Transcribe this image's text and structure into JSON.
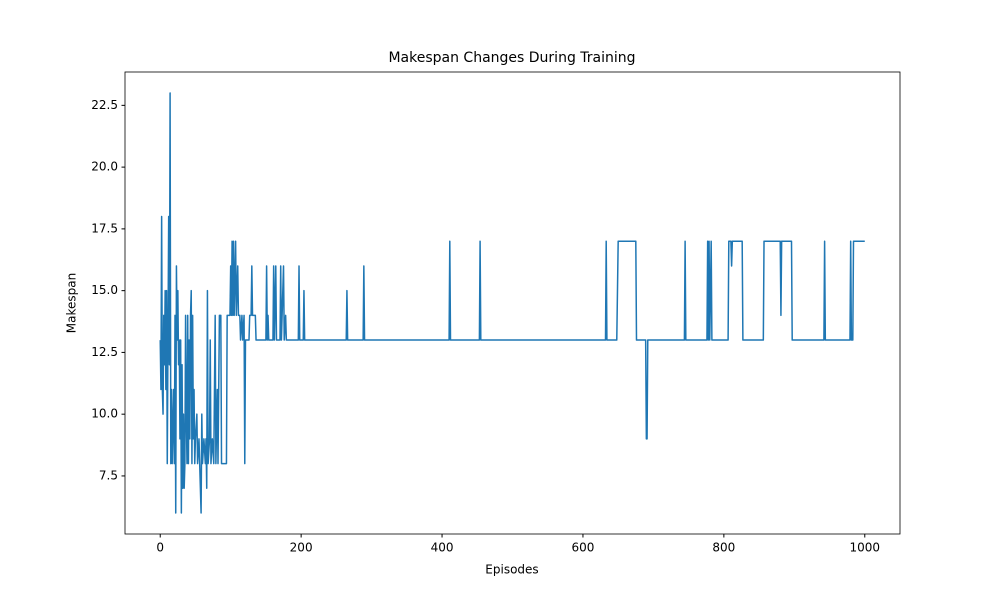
{
  "chart_data": {
    "type": "line",
    "title": "Makespan Changes During Training",
    "x_label": "Episodes",
    "y_label": "Makespan",
    "xlim": [
      -50,
      1050
    ],
    "ylim": [
      5.15,
      23.85
    ],
    "xticks": [
      0,
      200,
      400,
      600,
      800,
      1000
    ],
    "yticks": [
      7.5,
      {
        "value": 10,
        "label": "10.0"
      },
      12.5,
      {
        "value": 15,
        "label": "15.0"
      },
      17.5,
      {
        "value": 20,
        "label": "20.0"
      },
      22.5
    ],
    "grid": false,
    "x": [
      0,
      1,
      2,
      3,
      4,
      5,
      6,
      7,
      8,
      9,
      10,
      11,
      12,
      13,
      14,
      15,
      16,
      17,
      19,
      20,
      21,
      22,
      23,
      24,
      25,
      26,
      27,
      28,
      29,
      30,
      31,
      32,
      33,
      34,
      35,
      36,
      37,
      38,
      39,
      40,
      41,
      42,
      43,
      44,
      45,
      46,
      47,
      48,
      49,
      50,
      52,
      53,
      55,
      56,
      58,
      59,
      60,
      62,
      64,
      65,
      66,
      67,
      68,
      70,
      71,
      72,
      74,
      76,
      78,
      79,
      81,
      82,
      84,
      86,
      87,
      94,
      95,
      99,
      100,
      101,
      102,
      103,
      104,
      105,
      107,
      108,
      110,
      111,
      113,
      114,
      116,
      117,
      119,
      120,
      121,
      126,
      127,
      129,
      130,
      131,
      135,
      136,
      150,
      151,
      152,
      153,
      154,
      160,
      161,
      162,
      164,
      165,
      170,
      171,
      172,
      175,
      176,
      178,
      179,
      196,
      197,
      198,
      203,
      204,
      205,
      264,
      265,
      266,
      288,
      289,
      290,
      410,
      411,
      412,
      453,
      454,
      455,
      632,
      633,
      634,
      648,
      650,
      675,
      676,
      689,
      690,
      691,
      692,
      744,
      745,
      746,
      776,
      777,
      778,
      779,
      780,
      782,
      783,
      806,
      807,
      810,
      811,
      812,
      826,
      827,
      856,
      857,
      880,
      881,
      882,
      896,
      897,
      942,
      943,
      944,
      979,
      980,
      981,
      983,
      984,
      1000
    ],
    "series": [
      {
        "color": "#1f77b4",
        "values": [
          13,
          11,
          18,
          11,
          10,
          14,
          12,
          15,
          11,
          15,
          8,
          13,
          18,
          12,
          23,
          8,
          11,
          8,
          11,
          8,
          14,
          6,
          16,
          13,
          15,
          12,
          13,
          9,
          13,
          6,
          12,
          7,
          10,
          7,
          8,
          14,
          10,
          8,
          14,
          8,
          13,
          9,
          14,
          15,
          8,
          14,
          9,
          11,
          8,
          9,
          10,
          8,
          9,
          8,
          6,
          10,
          8,
          9,
          8,
          9,
          7,
          15,
          8,
          9,
          13,
          8,
          9,
          8,
          14,
          8,
          11,
          8,
          14,
          14,
          8,
          8,
          14,
          14,
          16,
          14,
          17,
          14,
          17,
          14,
          17,
          14,
          16,
          14,
          14,
          13,
          14,
          13,
          14,
          8,
          13,
          13,
          14,
          14,
          16,
          14,
          14,
          13,
          13,
          16,
          13,
          14,
          13,
          13,
          16,
          13,
          16,
          13,
          13,
          16,
          13,
          16,
          13,
          14,
          13,
          13,
          16,
          13,
          13,
          15,
          13,
          13,
          15,
          13,
          13,
          16,
          13,
          13,
          17,
          13,
          13,
          17,
          13,
          13,
          17,
          13,
          13,
          17,
          17,
          13,
          13,
          9,
          9,
          13,
          13,
          17,
          13,
          13,
          17,
          13,
          17,
          13,
          17,
          13,
          13,
          17,
          17,
          16,
          17,
          17,
          13,
          13,
          17,
          17,
          14,
          17,
          17,
          13,
          13,
          17,
          13,
          13,
          17,
          13,
          13,
          17,
          17
        ]
      }
    ]
  }
}
